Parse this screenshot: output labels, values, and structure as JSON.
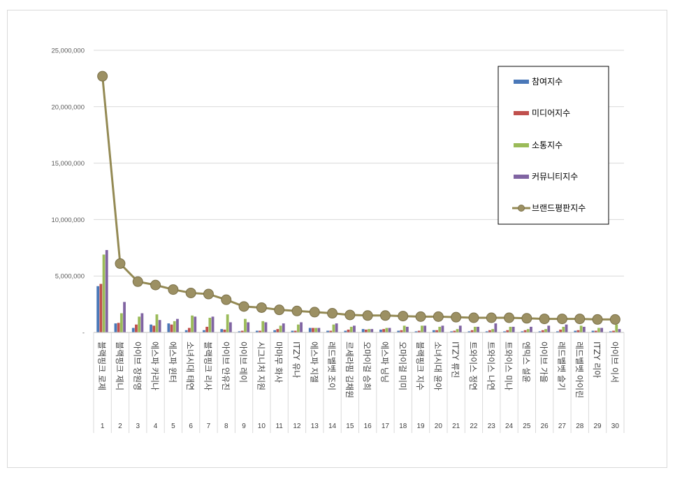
{
  "chart_data": {
    "type": "bar",
    "title": "",
    "xlabel": "",
    "ylabel": "",
    "ylim": [
      0,
      25000000
    ],
    "yticks": [
      {
        "value": 0,
        "label": "-"
      },
      {
        "value": 5000000,
        "label": "5,000,000"
      },
      {
        "value": 10000000,
        "label": "10,000,000"
      },
      {
        "value": 15000000,
        "label": "15,000,000"
      },
      {
        "value": 20000000,
        "label": "20,000,000"
      },
      {
        "value": 25000000,
        "label": "25,000,000"
      }
    ],
    "grid": true,
    "legend_position": "top-right",
    "indices": [
      "1",
      "2",
      "3",
      "4",
      "5",
      "6",
      "7",
      "8",
      "9",
      "10",
      "11",
      "12",
      "13",
      "14",
      "15",
      "16",
      "17",
      "18",
      "19",
      "20",
      "21",
      "22",
      "23",
      "24",
      "25",
      "26",
      "27",
      "28",
      "29",
      "30"
    ],
    "categories": [
      "블랙핑크 로제",
      "블랙핑크 제니",
      "아이브 장원영",
      "에스파 카리나",
      "에스파 윈터",
      "소녀시대 태연",
      "블랙핑크 리사",
      "아이브 안유진",
      "아이브 레이",
      "시그니처 지원",
      "마마무 화사",
      "ITZY 유나",
      "에스파 지젤",
      "레드벨벳 조이",
      "르세라핌 김채원",
      "오마이걸 승희",
      "에스파 닝닝",
      "오마이걸 미미",
      "블랙핑크 지수",
      "소녀시대 윤아",
      "ITZY 류진",
      "트와이스 정연",
      "트와이스 나연",
      "트와이스 미나",
      "엔믹스 설윤",
      "아이브 가을",
      "레드벨벳 슬기",
      "레드벨벳 아이린",
      "ITZY 리아",
      "아이브 이서"
    ],
    "series": [
      {
        "name": "참여지수",
        "kind": "bar",
        "color": "#4a78b8",
        "values": [
          4100000,
          800000,
          400000,
          700000,
          800000,
          200000,
          200000,
          300000,
          100000,
          150000,
          200000,
          150000,
          400000,
          150000,
          150000,
          300000,
          250000,
          150000,
          100000,
          200000,
          100000,
          100000,
          100000,
          100000,
          100000,
          100000,
          100000,
          150000,
          150000,
          100000
        ]
      },
      {
        "name": "미디어지수",
        "kind": "bar",
        "color": "#c0504d",
        "values": [
          4300000,
          850000,
          700000,
          600000,
          700000,
          400000,
          500000,
          250000,
          150000,
          150000,
          300000,
          150000,
          400000,
          150000,
          250000,
          250000,
          300000,
          200000,
          150000,
          200000,
          150000,
          200000,
          200000,
          200000,
          200000,
          200000,
          250000,
          200000,
          150000,
          150000
        ]
      },
      {
        "name": "소통지수",
        "kind": "bar",
        "color": "#9bbb59",
        "values": [
          6900000,
          1700000,
          1400000,
          1600000,
          1000000,
          1500000,
          1300000,
          1600000,
          1200000,
          1000000,
          600000,
          700000,
          400000,
          700000,
          500000,
          300000,
          400000,
          600000,
          600000,
          500000,
          300000,
          500000,
          300000,
          500000,
          300000,
          300000,
          500000,
          600000,
          400000,
          700000
        ]
      },
      {
        "name": "커뮤니티지수",
        "kind": "bar",
        "color": "#8064a2",
        "values": [
          7300000,
          2700000,
          1700000,
          1100000,
          1200000,
          1400000,
          1400000,
          900000,
          900000,
          900000,
          800000,
          900000,
          400000,
          800000,
          600000,
          300000,
          400000,
          500000,
          600000,
          600000,
          600000,
          500000,
          800000,
          500000,
          500000,
          600000,
          700000,
          500000,
          400000,
          300000
        ]
      },
      {
        "name": "브랜드평판지수",
        "kind": "line",
        "color": "#948a54",
        "values": [
          22700000,
          6100000,
          4500000,
          4200000,
          3800000,
          3500000,
          3400000,
          2900000,
          2300000,
          2200000,
          2000000,
          1900000,
          1800000,
          1700000,
          1550000,
          1500000,
          1500000,
          1450000,
          1400000,
          1400000,
          1350000,
          1300000,
          1300000,
          1300000,
          1250000,
          1200000,
          1200000,
          1200000,
          1150000,
          1150000
        ]
      }
    ]
  }
}
